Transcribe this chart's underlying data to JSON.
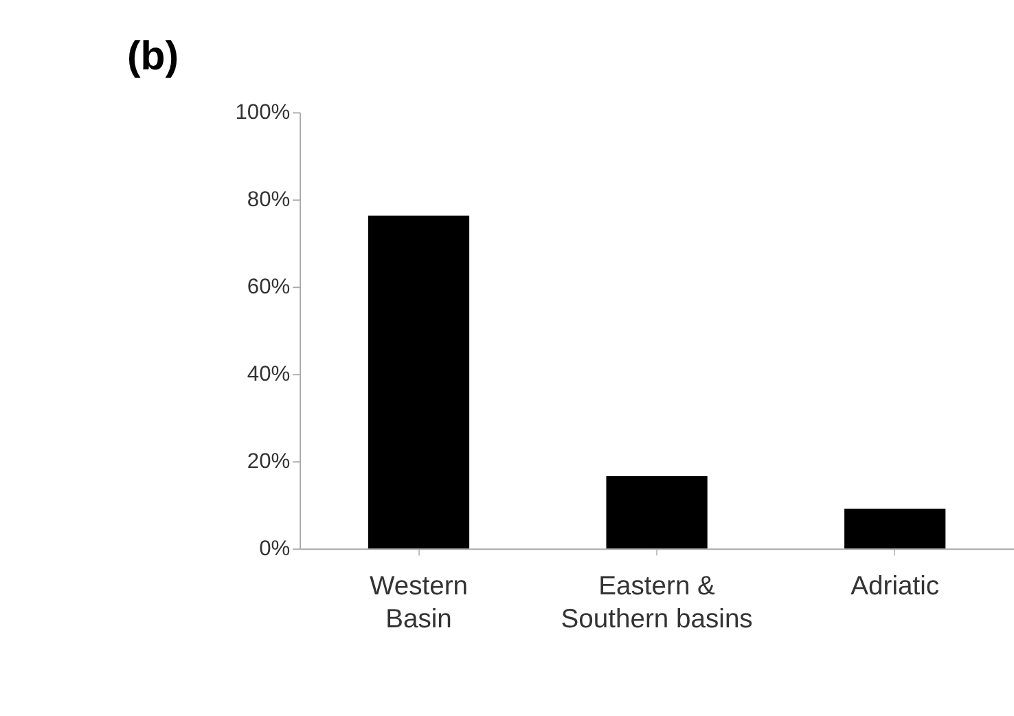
{
  "chart_data": {
    "type": "bar",
    "title": "(b)",
    "categories": [
      "Western\nBasin",
      "Eastern &\nSouthern basins",
      "Adriatic"
    ],
    "values": [
      76.3,
      16.6,
      9.1
    ],
    "color": "#000000",
    "ylim": [
      0,
      100
    ],
    "yticks": [
      {
        "value": 0,
        "label": "0%"
      },
      {
        "value": 20,
        "label": "20%"
      },
      {
        "value": 40,
        "label": "40%"
      },
      {
        "value": 60,
        "label": "60%"
      },
      {
        "value": 80,
        "label": "80%"
      },
      {
        "value": 100,
        "label": "100%"
      }
    ],
    "grid": false
  }
}
